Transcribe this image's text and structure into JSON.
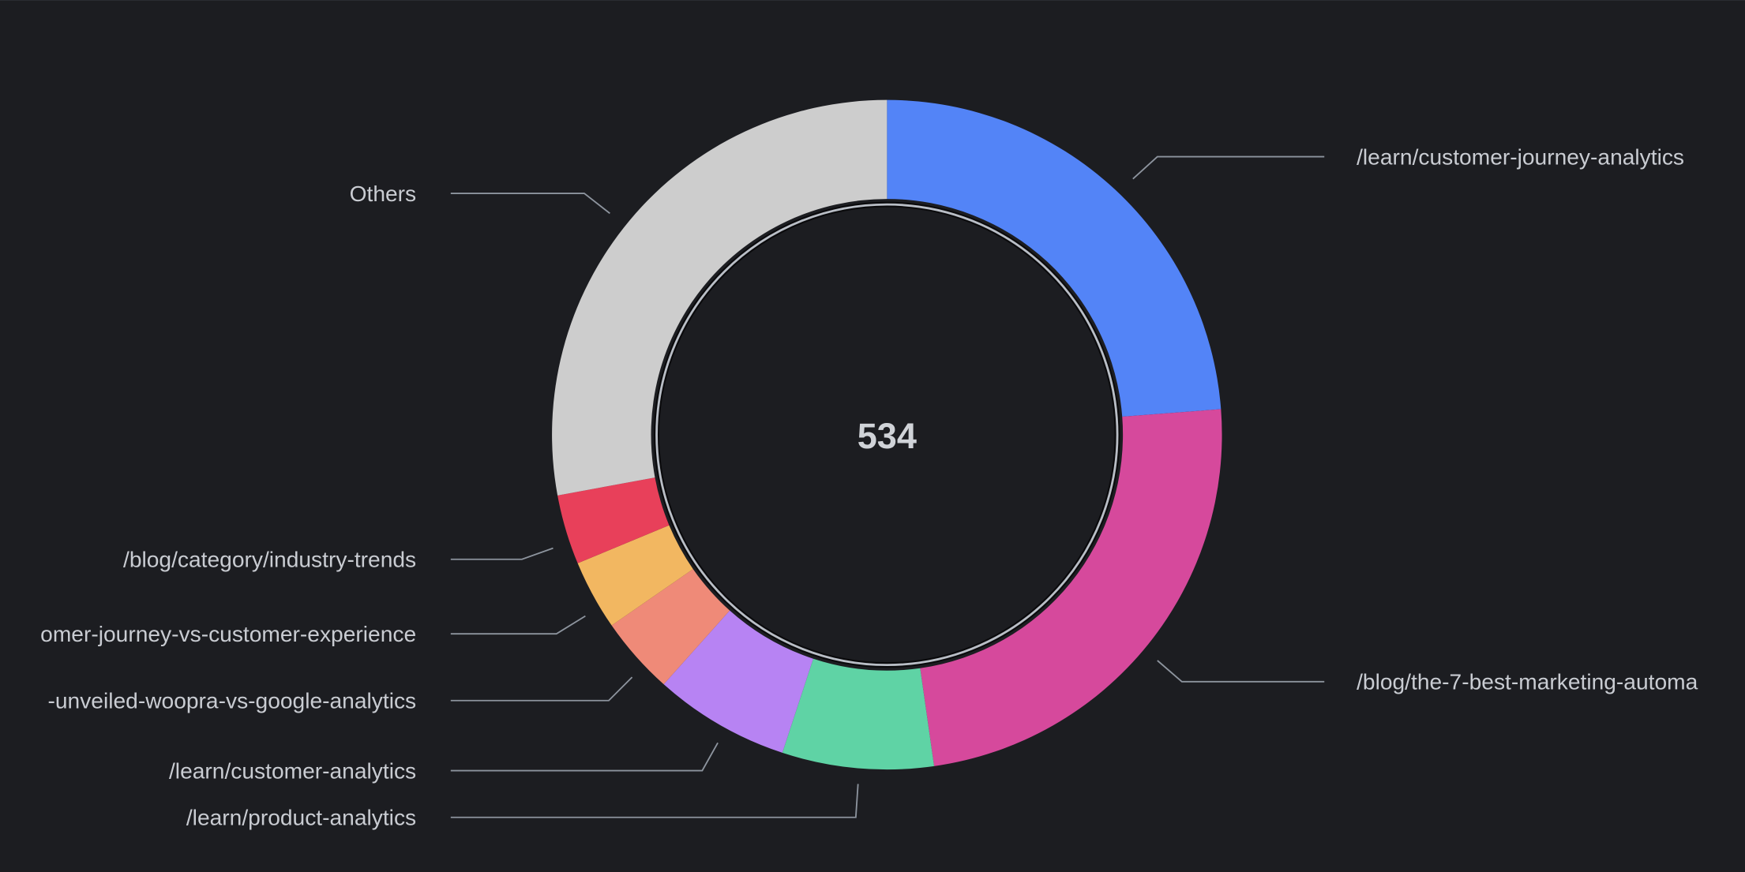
{
  "chart_data": {
    "type": "pie",
    "variant": "donut",
    "total_label": "534",
    "start_angle_deg": 0,
    "direction": "clockwise",
    "slices": [
      {
        "label": "/learn/customer-journey-analytics",
        "value": 127,
        "color": "#5384f7"
      },
      {
        "label": "/blog/the-7-best-marketing-automa",
        "value": 128,
        "color": "#d6499c"
      },
      {
        "label": "/learn/product-analytics",
        "value": 39,
        "color": "#5fd3a5"
      },
      {
        "label": "/learn/customer-analytics",
        "value": 35,
        "color": "#b783f3"
      },
      {
        "label": "-unveiled-woopra-vs-google-analytics",
        "value": 20,
        "color": "#ef8a78"
      },
      {
        "label": "omer-journey-vs-customer-experience",
        "value": 18,
        "color": "#f2b761"
      },
      {
        "label": "/blog/category/industry-trends",
        "value": 18,
        "color": "#e8405a"
      },
      {
        "label": "Others",
        "value": 149,
        "color": "#cdcdcd"
      }
    ],
    "legend": "leader-line labels"
  }
}
